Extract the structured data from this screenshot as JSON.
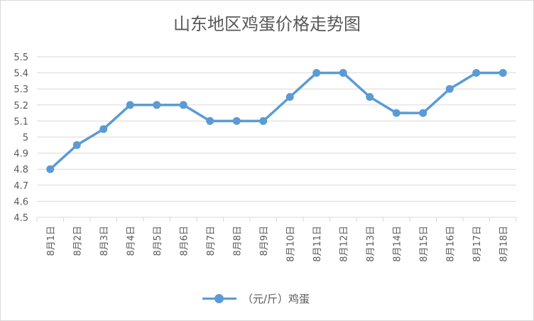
{
  "chart_data": {
    "type": "line",
    "title": "山东地区鸡蛋价格走势图",
    "categories": [
      "8月1日",
      "8月2日",
      "8月3日",
      "8月4日",
      "8月5日",
      "8月6日",
      "8月7日",
      "8月8日",
      "8月9日",
      "8月10日",
      "8月11日",
      "8月12日",
      "8月13日",
      "8月14日",
      "8月15日",
      "8月16日",
      "8月17日",
      "8月18日"
    ],
    "series": [
      {
        "name": "（元/斤）鸡蛋",
        "values": [
          4.8,
          4.95,
          5.05,
          5.2,
          5.2,
          5.2,
          5.1,
          5.1,
          5.1,
          5.25,
          5.4,
          5.4,
          5.25,
          5.15,
          5.15,
          5.3,
          5.4,
          5.4
        ],
        "color": "#5b9bd5"
      }
    ],
    "yticks": [
      "4.5",
      "4.6",
      "4.7",
      "4.8",
      "4.9",
      "5",
      "5.1",
      "5.2",
      "5.3",
      "5.4",
      "5.5"
    ],
    "ylim": [
      4.5,
      5.5
    ],
    "grid": true,
    "legend": "bottom"
  }
}
